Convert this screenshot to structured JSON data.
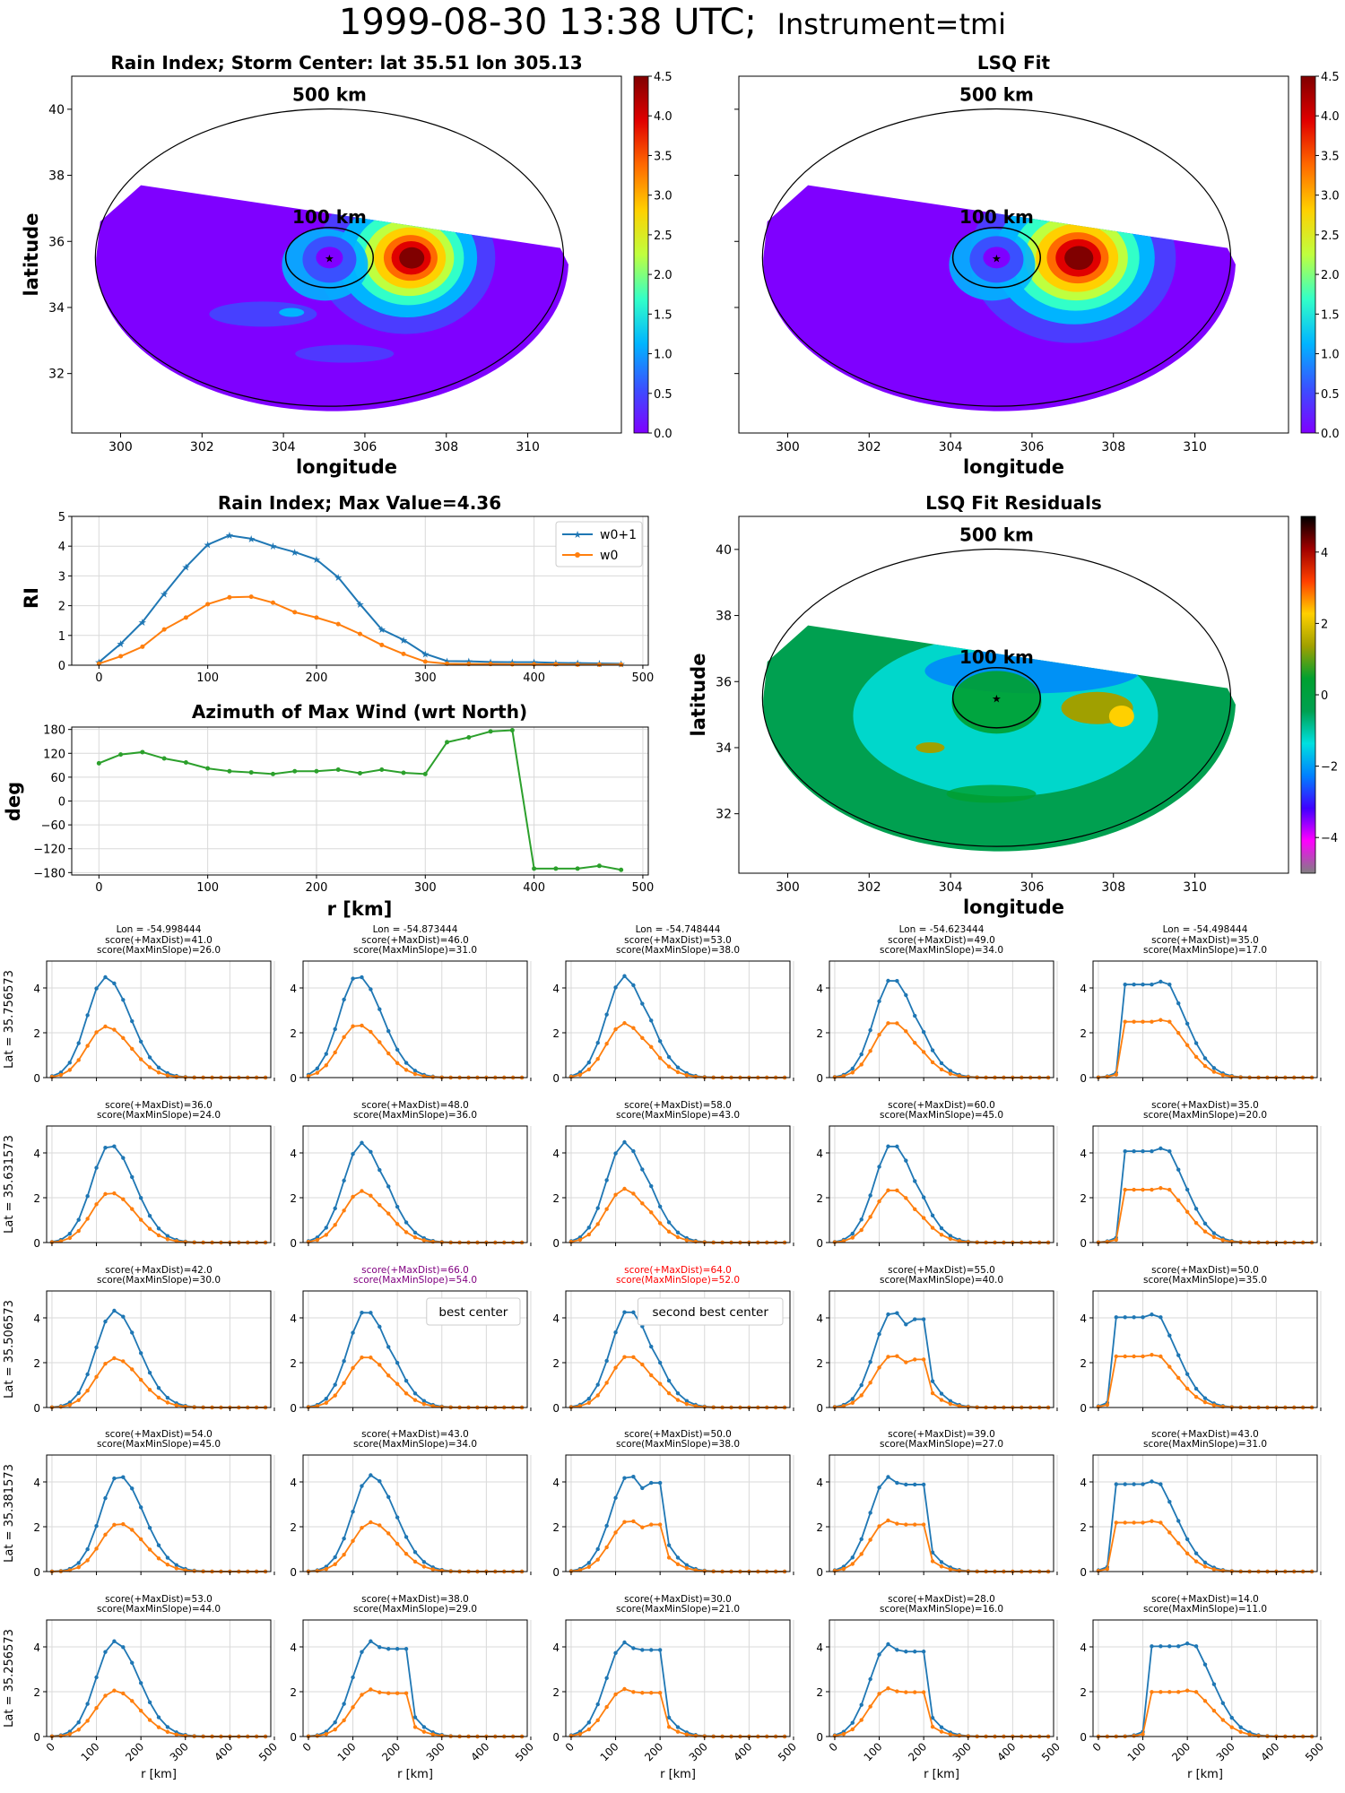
{
  "figure": {
    "title_main": "1999-08-30 13:38 UTC;",
    "title_inst": "Instrument=tmi"
  },
  "colors": {
    "w0p1": "#1f77b4",
    "w0": "#ff7f0e",
    "azimuth": "#2ca02c",
    "grid": "#d9d9d9",
    "purple": "#800080",
    "red": "#ff0000",
    "jet": [
      "#7f00ff",
      "#3a50ff",
      "#00b4ff",
      "#32ffc8",
      "#bfff3f",
      "#ffd000",
      "#ff6a00",
      "#e00000",
      "#800000"
    ],
    "residual": [
      "#808080",
      "#ff00ff",
      "#4000ff",
      "#0080ff",
      "#00e0e0",
      "#00a050",
      "#00a030",
      "#a0a000",
      "#ffd000",
      "#ff4000",
      "#a00000",
      "#000000"
    ]
  },
  "map_panels": [
    {
      "title": "Rain Index; Storm Center: lat 35.51 lon 305.13",
      "xlabel": "longitude",
      "ylabel": "latitude",
      "xticks": [
        "300",
        "302",
        "304",
        "306",
        "308",
        "310"
      ],
      "yticks": [
        "32",
        "34",
        "36",
        "38",
        "40"
      ],
      "label_500": "500 km",
      "label_100": "100 km",
      "colorbar_ticks": [
        "0.0",
        "0.5",
        "1.0",
        "1.5",
        "2.0",
        "2.5",
        "3.0",
        "3.5",
        "4.0",
        "4.5"
      ]
    },
    {
      "title": "LSQ Fit",
      "xlabel": "longitude",
      "ylabel": "",
      "xticks": [
        "300",
        "302",
        "304",
        "306",
        "308",
        "310"
      ],
      "yticks": [
        "",
        "",
        "",
        "",
        ""
      ],
      "label_500": "500 km",
      "label_100": "100 km",
      "colorbar_ticks": [
        "0.0",
        "0.5",
        "1.0",
        "1.5",
        "2.0",
        "2.5",
        "3.0",
        "3.5",
        "4.0",
        "4.5"
      ]
    },
    {
      "title": "LSQ Fit Residuals",
      "xlabel": "longitude",
      "ylabel": "latitude",
      "xticks": [
        "300",
        "302",
        "304",
        "306",
        "308",
        "310"
      ],
      "yticks": [
        "32",
        "34",
        "36",
        "38",
        "40"
      ],
      "label_500": "500 km",
      "label_100": "100 km",
      "colorbar_ticks": [
        "−4",
        "−2",
        "0",
        "2",
        "4"
      ]
    }
  ],
  "chart_data": [
    {
      "type": "line",
      "title": "Rain Index; Max Value=4.36",
      "xlabel": "",
      "ylabel": "RI",
      "x": [
        0,
        20,
        40,
        60,
        80,
        100,
        120,
        140,
        160,
        180,
        200,
        220,
        240,
        260,
        280,
        300,
        320,
        340,
        360,
        380,
        400,
        420,
        440,
        460,
        480
      ],
      "xticks": [
        0,
        100,
        200,
        300,
        400,
        500
      ],
      "ylim": [
        0,
        5
      ],
      "yticks": [
        0,
        1,
        2,
        3,
        4,
        5
      ],
      "legend_position": "top-right",
      "series": [
        {
          "name": "w0+1",
          "marker": "star",
          "values": [
            0.1,
            0.72,
            1.45,
            2.4,
            3.3,
            4.05,
            4.36,
            4.25,
            4.0,
            3.8,
            3.55,
            2.95,
            2.05,
            1.2,
            0.85,
            0.38,
            0.14,
            0.13,
            0.11,
            0.1,
            0.1,
            0.08,
            0.07,
            0.06,
            0.05
          ]
        },
        {
          "name": "w0",
          "marker": "dot",
          "values": [
            0.05,
            0.3,
            0.62,
            1.2,
            1.6,
            2.05,
            2.28,
            2.3,
            2.1,
            1.78,
            1.6,
            1.38,
            1.05,
            0.68,
            0.38,
            0.12,
            0.05,
            0.04,
            0.04,
            0.03,
            0.03,
            0.03,
            0.02,
            0.02,
            0.02
          ]
        }
      ]
    },
    {
      "type": "line",
      "title": "Azimuth of Max Wind (wrt North)",
      "xlabel": "r [km]",
      "ylabel": "deg",
      "x": [
        0,
        20,
        40,
        60,
        80,
        100,
        120,
        140,
        160,
        180,
        200,
        220,
        240,
        260,
        280,
        300,
        320,
        340,
        360,
        380,
        400,
        420,
        440,
        460,
        480
      ],
      "xticks": [
        0,
        100,
        200,
        300,
        400,
        500
      ],
      "ylim": [
        -180,
        180
      ],
      "yticks": [
        180,
        120,
        60,
        0,
        -60,
        -120,
        -180
      ],
      "series": [
        {
          "name": "",
          "values": [
            95,
            117,
            123,
            107,
            97,
            82,
            75,
            72,
            68,
            75,
            75,
            79,
            70,
            79,
            71,
            68,
            148,
            160,
            175,
            178,
            -170,
            -170,
            -170,
            -163,
            -173
          ]
        }
      ]
    },
    {
      "type": "line",
      "title": "",
      "grid_rows": [
        "Lat = 35.756573",
        "Lat = 35.631573",
        "Lat = 35.506573",
        "Lat = 35.381573",
        "Lat = 35.256573"
      ],
      "grid_cols": [
        "Lon = -54.998444",
        "Lon = -54.873444",
        "Lon = -54.748444",
        "Lon = -54.623444",
        "Lon = -54.498444"
      ],
      "xlabel": "r [km]",
      "xticks": [
        0,
        100,
        200,
        300,
        400,
        500
      ],
      "yticks": [
        0,
        2,
        4
      ],
      "ylim": [
        0,
        5
      ],
      "x_step_km": 20,
      "cells": [
        {
          "row": 0,
          "col": 0,
          "score1": "score(+MaxDist)=41.0",
          "score2": "score(MaxMinSlope)=26.0",
          "peak1": 4.48,
          "peak2": 2.28,
          "pos": 120,
          "shape": "a"
        },
        {
          "row": 0,
          "col": 1,
          "score1": "score(+MaxDist)=46.0",
          "score2": "score(MaxMinSlope)=31.0",
          "peak1": 4.55,
          "peak2": 2.36,
          "pos": 110,
          "shape": "a"
        },
        {
          "row": 0,
          "col": 2,
          "score1": "score(+MaxDist)=53.0",
          "score2": "score(MaxMinSlope)=38.0",
          "peak1": 4.53,
          "peak2": 2.43,
          "pos": 120,
          "shape": "b"
        },
        {
          "row": 0,
          "col": 3,
          "score1": "score(+MaxDist)=49.0",
          "score2": "score(MaxMinSlope)=34.0",
          "peak1": 4.45,
          "peak2": 2.5,
          "pos": 130,
          "shape": "b"
        },
        {
          "row": 0,
          "col": 4,
          "score1": "score(+MaxDist)=35.0",
          "score2": "score(MaxMinSlope)=17.0",
          "peak1": 4.28,
          "peak2": 2.57,
          "pos": 140,
          "shape": "c"
        },
        {
          "row": 1,
          "col": 0,
          "score1": "score(+MaxDist)=36.0",
          "score2": "score(MaxMinSlope)=24.0",
          "peak1": 4.36,
          "peak2": 2.23,
          "pos": 130,
          "shape": "a"
        },
        {
          "row": 1,
          "col": 1,
          "score1": "score(+MaxDist)=48.0",
          "score2": "score(MaxMinSlope)=36.0",
          "peak1": 4.45,
          "peak2": 2.3,
          "pos": 120,
          "shape": "b"
        },
        {
          "row": 1,
          "col": 2,
          "score1": "score(+MaxDist)=58.0",
          "score2": "score(MaxMinSlope)=43.0",
          "peak1": 4.48,
          "peak2": 2.4,
          "pos": 120,
          "shape": "b"
        },
        {
          "row": 1,
          "col": 3,
          "score1": "score(+MaxDist)=60.0",
          "score2": "score(MaxMinSlope)=45.0",
          "peak1": 4.42,
          "peak2": 2.4,
          "pos": 130,
          "shape": "b"
        },
        {
          "row": 1,
          "col": 4,
          "score1": "score(+MaxDist)=35.0",
          "score2": "score(MaxMinSlope)=20.0",
          "peak1": 4.2,
          "peak2": 2.43,
          "pos": 140,
          "shape": "c"
        },
        {
          "row": 2,
          "col": 0,
          "score1": "score(+MaxDist)=42.0",
          "score2": "score(MaxMinSlope)=30.0",
          "peak1": 4.32,
          "peak2": 2.2,
          "pos": 140,
          "shape": "a"
        },
        {
          "row": 2,
          "col": 1,
          "score1": "score(+MaxDist)=66.0",
          "score2": "score(MaxMinSlope)=54.0",
          "peak1": 4.36,
          "peak2": 2.3,
          "pos": 130,
          "shape": "b",
          "color": "purple",
          "legend": "best center"
        },
        {
          "row": 2,
          "col": 2,
          "score1": "score(+MaxDist)=64.0",
          "score2": "score(MaxMinSlope)=52.0",
          "peak1": 4.38,
          "peak2": 2.32,
          "pos": 130,
          "shape": "b",
          "color": "red",
          "legend": "second best center"
        },
        {
          "row": 2,
          "col": 3,
          "score1": "score(+MaxDist)=55.0",
          "score2": "score(MaxMinSlope)=40.0",
          "peak1": 4.28,
          "peak2": 2.33,
          "pos": 130,
          "shape": "d"
        },
        {
          "row": 2,
          "col": 4,
          "score1": "score(+MaxDist)=50.0",
          "score2": "score(MaxMinSlope)=35.0",
          "peak1": 4.15,
          "peak2": 2.35,
          "pos": 120,
          "shape": "c"
        },
        {
          "row": 3,
          "col": 0,
          "score1": "score(+MaxDist)=54.0",
          "score2": "score(MaxMinSlope)=45.0",
          "peak1": 4.28,
          "peak2": 2.15,
          "pos": 150,
          "shape": "a"
        },
        {
          "row": 3,
          "col": 1,
          "score1": "score(+MaxDist)=43.0",
          "score2": "score(MaxMinSlope)=34.0",
          "peak1": 4.3,
          "peak2": 2.2,
          "pos": 140,
          "shape": "a"
        },
        {
          "row": 3,
          "col": 2,
          "score1": "score(+MaxDist)=50.0",
          "score2": "score(MaxMinSlope)=38.0",
          "peak1": 4.3,
          "peak2": 2.28,
          "pos": 130,
          "shape": "d"
        },
        {
          "row": 3,
          "col": 3,
          "score1": "score(+MaxDist)=39.0",
          "score2": "score(MaxMinSlope)=27.0",
          "peak1": 4.22,
          "peak2": 2.28,
          "pos": 120,
          "shape": "d"
        },
        {
          "row": 3,
          "col": 4,
          "score1": "score(+MaxDist)=43.0",
          "score2": "score(MaxMinSlope)=31.0",
          "peak1": 4.02,
          "peak2": 2.25,
          "pos": 120,
          "shape": "c"
        },
        {
          "row": 4,
          "col": 0,
          "score1": "score(+MaxDist)=53.0",
          "score2": "score(MaxMinSlope)=44.0",
          "peak1": 4.25,
          "peak2": 2.05,
          "pos": 140,
          "shape": "a"
        },
        {
          "row": 4,
          "col": 1,
          "score1": "score(+MaxDist)=38.0",
          "score2": "score(MaxMinSlope)=29.0",
          "peak1": 4.25,
          "peak2": 2.1,
          "pos": 140,
          "shape": "d"
        },
        {
          "row": 4,
          "col": 2,
          "score1": "score(+MaxDist)=30.0",
          "score2": "score(MaxMinSlope)=21.0",
          "peak1": 4.2,
          "peak2": 2.12,
          "pos": 120,
          "shape": "d"
        },
        {
          "row": 4,
          "col": 3,
          "score1": "score(+MaxDist)=28.0",
          "score2": "score(MaxMinSlope)=16.0",
          "peak1": 4.12,
          "peak2": 2.15,
          "pos": 120,
          "shape": "d"
        },
        {
          "row": 4,
          "col": 4,
          "score1": "score(+MaxDist)=14.0",
          "score2": "score(MaxMinSlope)=11.0",
          "peak1": 4.15,
          "peak2": 2.05,
          "pos": 200,
          "shape": "c"
        }
      ]
    }
  ]
}
